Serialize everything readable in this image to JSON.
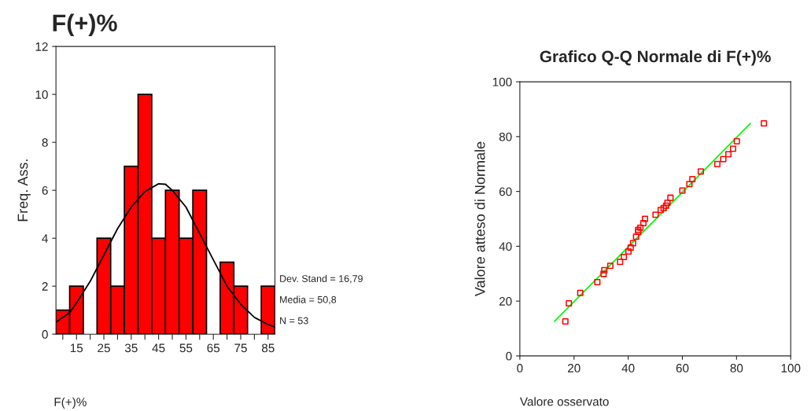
{
  "chart_data": [
    {
      "type": "histogram",
      "title": "F(+)%",
      "xlabel": "F(+)%",
      "ylabel": "Freq. Ass.",
      "bins": [
        7.5,
        12.5,
        17.5,
        22.5,
        27.5,
        32.5,
        37.5,
        42.5,
        47.5,
        52.5,
        57.5,
        62.5,
        67.5,
        72.5,
        77.5,
        82.5,
        87.5
      ],
      "values": [
        1,
        2,
        0,
        4,
        2,
        7,
        10,
        4,
        6,
        4,
        6,
        0,
        3,
        2,
        0,
        2
      ],
      "color": "#ff0000",
      "series": [
        {
          "type": "line",
          "color": "#000000",
          "x": [
            7.5,
            12.5,
            15,
            20,
            25,
            30,
            35,
            40,
            45,
            47.5,
            50,
            55,
            60,
            65,
            70,
            75,
            80,
            85,
            87.5
          ],
          "values": [
            0.5,
            0.9,
            1.3,
            2.2,
            3.3,
            4.4,
            5.3,
            5.95,
            6.27,
            6.25,
            6.0,
            5.3,
            4.2,
            3.1,
            2.0,
            1.25,
            0.7,
            0.4,
            0.3
          ]
        }
      ],
      "xlim": [
        7.5,
        87.5
      ],
      "ylim": [
        0,
        12
      ],
      "xticks": [
        {
          "value": 10,
          "label": null
        },
        15,
        {
          "value": 20,
          "label": null
        },
        25,
        {
          "value": 30,
          "label": null
        },
        35,
        {
          "value": 40,
          "label": null
        },
        45,
        {
          "value": 50,
          "label": null
        },
        55,
        {
          "value": 60,
          "label": null
        },
        65,
        {
          "value": 70,
          "label": null
        },
        75,
        {
          "value": 80,
          "label": null
        },
        85
      ],
      "yticks": [
        0,
        2,
        4,
        6,
        8,
        10,
        12
      ],
      "annotations": [
        "Dev. Stand = 16,79",
        "Media = 50,8",
        "N = 53"
      ],
      "grid": false,
      "legend": false
    },
    {
      "type": "scatter",
      "title": "Grafico Q-Q Normale di F(+)%",
      "xlabel": "Valore osservato",
      "ylabel": "Valore atteso di Normale",
      "marker": "square",
      "series": [
        {
          "color": "#ff0000",
          "x": [
            16.8,
            18.1,
            22.3,
            28.6,
            30.9,
            31.2,
            33.4,
            37.0,
            38.4,
            40.1,
            40.9,
            41.8,
            42.9,
            43.7,
            43.7,
            44.5,
            45.6,
            46.2,
            50.1,
            52.0,
            53.1,
            54.0,
            54.5,
            55.6,
            60.0,
            62.6,
            63.7,
            66.8,
            72.9,
            75.1,
            77.0,
            78.7,
            80.1,
            90.1
          ],
          "values": [
            12.6,
            19.2,
            23.0,
            26.9,
            29.9,
            31.3,
            32.9,
            34.3,
            36.1,
            38.1,
            39.5,
            41.1,
            43.5,
            45.3,
            46.0,
            46.8,
            48.4,
            50.0,
            51.5,
            53.2,
            53.9,
            54.8,
            55.9,
            57.7,
            60.3,
            62.7,
            64.5,
            67.3,
            70.0,
            71.8,
            73.6,
            75.6,
            78.3,
            84.8
          ]
        },
        {
          "type": "line",
          "marker": "none",
          "color": "#00ff00",
          "x": [
            12.8,
            85.1
          ],
          "values": [
            12.6,
            84.8
          ]
        }
      ],
      "xlim": [
        0,
        100
      ],
      "ylim": [
        0,
        100
      ],
      "xticks": [
        0,
        20,
        40,
        60,
        80,
        100
      ],
      "yticks": [
        0,
        20,
        40,
        60,
        80,
        100
      ],
      "grid": false,
      "legend": false
    }
  ]
}
